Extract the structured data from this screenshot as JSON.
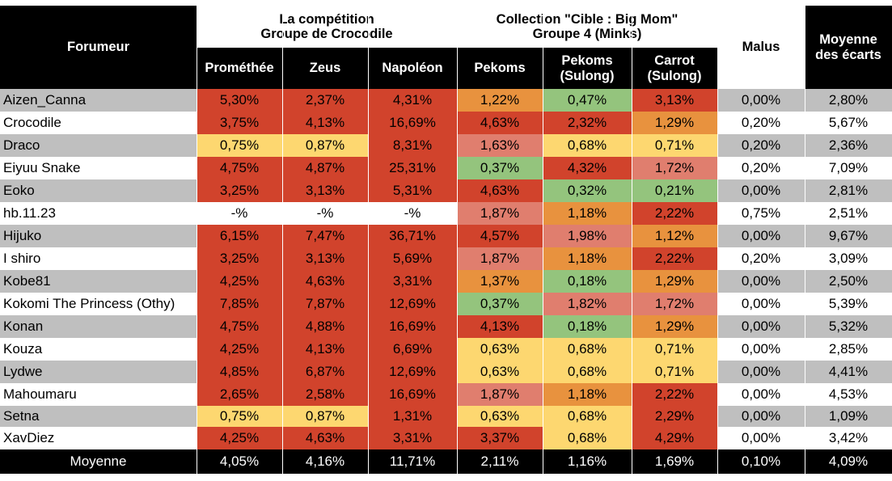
{
  "headers": {
    "forumeur": "Forumeur",
    "group1_title": "La compétition\nGroupe de Crocodile",
    "group2_title": "Collection \"Cible : Big Mom\"\nGroupe 4 (Minks)",
    "malus": "Malus",
    "moyenne_ecarts": "Moyenne\ndes écarts",
    "columns": [
      "Prométhée",
      "Zeus",
      "Napoléon",
      "Pekoms",
      "Pekoms\n(Sulong)",
      "Carrot\n(Sulong)"
    ]
  },
  "colors": {
    "row_gray": "#bfbfbf",
    "row_white": "#ffffff",
    "red": "#d1432c",
    "orange": "#e8923e",
    "salmon": "#e07e6e",
    "yellow": "#fdd770",
    "green": "#94c47d",
    "header_dark": "#000000"
  },
  "rows": [
    {
      "name": "Aizen_Canna",
      "values": [
        "5,30%",
        "2,37%",
        "4,31%",
        "1,22%",
        "0,47%",
        "3,13%"
      ],
      "colors": [
        "red",
        "red",
        "red",
        "orange",
        "green",
        "red"
      ],
      "malus": "0,00%",
      "avg": "2,80%"
    },
    {
      "name": "Crocodile",
      "values": [
        "3,75%",
        "4,13%",
        "16,69%",
        "4,63%",
        "2,32%",
        "1,29%"
      ],
      "colors": [
        "red",
        "red",
        "red",
        "red",
        "red",
        "orange"
      ],
      "malus": "0,20%",
      "avg": "5,67%"
    },
    {
      "name": "Draco",
      "values": [
        "0,75%",
        "0,87%",
        "8,31%",
        "1,63%",
        "0,68%",
        "0,71%"
      ],
      "colors": [
        "yellow",
        "yellow",
        "red",
        "salmon",
        "yellow",
        "yellow"
      ],
      "malus": "0,20%",
      "avg": "2,36%"
    },
    {
      "name": "Eiyuu Snake",
      "values": [
        "4,75%",
        "4,87%",
        "25,31%",
        "0,37%",
        "4,32%",
        "1,72%"
      ],
      "colors": [
        "red",
        "red",
        "red",
        "green",
        "red",
        "salmon"
      ],
      "malus": "0,20%",
      "avg": "7,09%"
    },
    {
      "name": "Eoko",
      "values": [
        "3,25%",
        "3,13%",
        "5,31%",
        "4,63%",
        "0,32%",
        "0,21%"
      ],
      "colors": [
        "red",
        "red",
        "red",
        "red",
        "green",
        "green"
      ],
      "malus": "0,00%",
      "avg": "2,81%"
    },
    {
      "name": "hb.11.23",
      "values": [
        "-%",
        "-%",
        "-%",
        "1,87%",
        "1,18%",
        "2,22%"
      ],
      "colors": [
        "none",
        "none",
        "none",
        "salmon",
        "orange",
        "red"
      ],
      "malus": "0,75%",
      "avg": "2,51%"
    },
    {
      "name": "Hijuko",
      "values": [
        "6,15%",
        "7,47%",
        "36,71%",
        "4,57%",
        "1,98%",
        "1,12%"
      ],
      "colors": [
        "red",
        "red",
        "red",
        "red",
        "salmon",
        "orange"
      ],
      "malus": "0,00%",
      "avg": "9,67%"
    },
    {
      "name": "I shiro",
      "values": [
        "3,25%",
        "3,13%",
        "5,69%",
        "1,87%",
        "1,18%",
        "2,22%"
      ],
      "colors": [
        "red",
        "red",
        "red",
        "salmon",
        "orange",
        "red"
      ],
      "malus": "0,20%",
      "avg": "3,09%"
    },
    {
      "name": "Kobe81",
      "values": [
        "4,25%",
        "4,63%",
        "3,31%",
        "1,37%",
        "0,18%",
        "1,29%"
      ],
      "colors": [
        "red",
        "red",
        "red",
        "orange",
        "green",
        "orange"
      ],
      "malus": "0,00%",
      "avg": "2,50%"
    },
    {
      "name": "Kokomi The Princess (Othy)",
      "values": [
        "7,85%",
        "7,87%",
        "12,69%",
        "0,37%",
        "1,82%",
        "1,72%"
      ],
      "colors": [
        "red",
        "red",
        "red",
        "green",
        "salmon",
        "salmon"
      ],
      "malus": "0,00%",
      "avg": "5,39%"
    },
    {
      "name": "Konan",
      "values": [
        "4,75%",
        "4,88%",
        "16,69%",
        "4,13%",
        "0,18%",
        "1,29%"
      ],
      "colors": [
        "red",
        "red",
        "red",
        "red",
        "green",
        "orange"
      ],
      "malus": "0,00%",
      "avg": "5,32%"
    },
    {
      "name": "Kouza",
      "values": [
        "4,25%",
        "4,13%",
        "6,69%",
        "0,63%",
        "0,68%",
        "0,71%"
      ],
      "colors": [
        "red",
        "red",
        "red",
        "yellow",
        "yellow",
        "yellow"
      ],
      "malus": "0,00%",
      "avg": "2,85%"
    },
    {
      "name": "Lydwe",
      "values": [
        "4,85%",
        "6,87%",
        "12,69%",
        "0,63%",
        "0,68%",
        "0,71%"
      ],
      "colors": [
        "red",
        "red",
        "red",
        "yellow",
        "yellow",
        "yellow"
      ],
      "malus": "0,00%",
      "avg": "4,41%"
    },
    {
      "name": "Mahoumaru",
      "values": [
        "2,65%",
        "2,58%",
        "16,69%",
        "1,87%",
        "1,18%",
        "2,22%"
      ],
      "colors": [
        "red",
        "red",
        "red",
        "salmon",
        "orange",
        "red"
      ],
      "malus": "0,00%",
      "avg": "4,53%"
    },
    {
      "name": "Setna",
      "values": [
        "0,75%",
        "0,87%",
        "1,31%",
        "0,63%",
        "0,68%",
        "2,29%"
      ],
      "colors": [
        "yellow",
        "yellow",
        "red",
        "yellow",
        "yellow",
        "red"
      ],
      "malus": "0,00%",
      "avg": "1,09%"
    },
    {
      "name": "XavDiez",
      "values": [
        "4,25%",
        "4,63%",
        "3,31%",
        "3,37%",
        "0,68%",
        "4,29%"
      ],
      "colors": [
        "red",
        "red",
        "red",
        "red",
        "yellow",
        "red"
      ],
      "malus": "0,00%",
      "avg": "3,42%"
    }
  ],
  "footer": {
    "label": "Moyenne",
    "values": [
      "4,05%",
      "4,16%",
      "11,71%",
      "2,11%",
      "1,16%",
      "1,69%"
    ],
    "malus": "0,10%",
    "avg": "4,09%"
  }
}
